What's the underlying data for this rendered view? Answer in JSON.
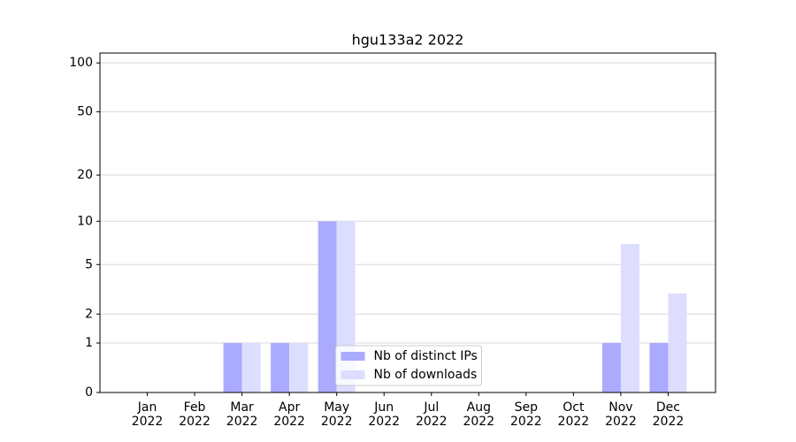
{
  "chart_data": {
    "type": "bar",
    "title": "hgu133a2 2022",
    "categories": [
      "Jan\n2022",
      "Feb\n2022",
      "Mar\n2022",
      "Apr\n2022",
      "May\n2022",
      "Jun\n2022",
      "Jul\n2022",
      "Aug\n2022",
      "Sep\n2022",
      "Oct\n2022",
      "Nov\n2022",
      "Dec\n2022"
    ],
    "series": [
      {
        "name": "Nb of distinct IPs",
        "color": "#aaaaff",
        "values": [
          0,
          0,
          1,
          1,
          10,
          0,
          0,
          0,
          0,
          0,
          1,
          1
        ]
      },
      {
        "name": "Nb of downloads",
        "color": "#ddddff",
        "values": [
          0,
          0,
          1,
          1,
          10,
          0,
          0,
          0,
          0,
          0,
          7,
          3
        ]
      }
    ],
    "yscale": "log1p",
    "ylim": [
      0,
      115
    ],
    "yticks": [
      0,
      1,
      2,
      5,
      10,
      20,
      50,
      100
    ],
    "grid": true,
    "legend": "lower center"
  }
}
